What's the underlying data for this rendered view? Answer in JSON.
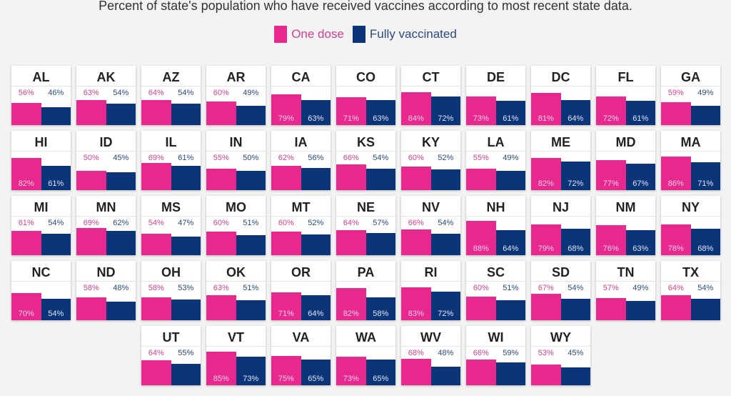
{
  "subtitle": "Percent of state's population who have received vaccines according to most recent state data.",
  "legend": [
    {
      "label": "One dose",
      "color": "#e7288f"
    },
    {
      "label": "Fully vaccinated",
      "color": "#0c3479"
    }
  ],
  "colors": {
    "one_dose": "#e7288f",
    "fully": "#0c3479",
    "one_text": "#d6408f",
    "fully_text": "#2a4a80"
  },
  "chart_data": {
    "type": "bar",
    "title": "Percent of state's population who have received vaccines according to most recent state data.",
    "series_names": [
      "One dose",
      "Fully vaccinated"
    ],
    "unit": "%",
    "ylim": [
      0,
      100
    ],
    "states": [
      {
        "state": "AL",
        "one_dose": 56,
        "fully": 46
      },
      {
        "state": "AK",
        "one_dose": 63,
        "fully": 54
      },
      {
        "state": "AZ",
        "one_dose": 64,
        "fully": 54
      },
      {
        "state": "AR",
        "one_dose": 60,
        "fully": 49
      },
      {
        "state": "CA",
        "one_dose": 79,
        "fully": 63
      },
      {
        "state": "CO",
        "one_dose": 71,
        "fully": 63
      },
      {
        "state": "CT",
        "one_dose": 84,
        "fully": 72
      },
      {
        "state": "DE",
        "one_dose": 73,
        "fully": 61
      },
      {
        "state": "DC",
        "one_dose": 81,
        "fully": 64
      },
      {
        "state": "FL",
        "one_dose": 72,
        "fully": 61
      },
      {
        "state": "GA",
        "one_dose": 59,
        "fully": 49
      },
      {
        "state": "HI",
        "one_dose": 82,
        "fully": 61
      },
      {
        "state": "ID",
        "one_dose": 50,
        "fully": 45
      },
      {
        "state": "IL",
        "one_dose": 69,
        "fully": 61
      },
      {
        "state": "IN",
        "one_dose": 55,
        "fully": 50
      },
      {
        "state": "IA",
        "one_dose": 62,
        "fully": 56
      },
      {
        "state": "KS",
        "one_dose": 66,
        "fully": 54
      },
      {
        "state": "KY",
        "one_dose": 60,
        "fully": 52
      },
      {
        "state": "LA",
        "one_dose": 55,
        "fully": 49
      },
      {
        "state": "ME",
        "one_dose": 82,
        "fully": 72
      },
      {
        "state": "MD",
        "one_dose": 77,
        "fully": 67
      },
      {
        "state": "MA",
        "one_dose": 86,
        "fully": 71
      },
      {
        "state": "MI",
        "one_dose": 61,
        "fully": 54
      },
      {
        "state": "MN",
        "one_dose": 69,
        "fully": 62
      },
      {
        "state": "MS",
        "one_dose": 54,
        "fully": 47
      },
      {
        "state": "MO",
        "one_dose": 60,
        "fully": 51
      },
      {
        "state": "MT",
        "one_dose": 60,
        "fully": 52
      },
      {
        "state": "NE",
        "one_dose": 64,
        "fully": 57
      },
      {
        "state": "NV",
        "one_dose": 66,
        "fully": 54
      },
      {
        "state": "NH",
        "one_dose": 88,
        "fully": 64
      },
      {
        "state": "NJ",
        "one_dose": 79,
        "fully": 68
      },
      {
        "state": "NM",
        "one_dose": 76,
        "fully": 63
      },
      {
        "state": "NY",
        "one_dose": 78,
        "fully": 68
      },
      {
        "state": "NC",
        "one_dose": 70,
        "fully": 54
      },
      {
        "state": "ND",
        "one_dose": 58,
        "fully": 48
      },
      {
        "state": "OH",
        "one_dose": 58,
        "fully": 53
      },
      {
        "state": "OK",
        "one_dose": 63,
        "fully": 51
      },
      {
        "state": "OR",
        "one_dose": 71,
        "fully": 64
      },
      {
        "state": "PA",
        "one_dose": 82,
        "fully": 58
      },
      {
        "state": "RI",
        "one_dose": 83,
        "fully": 72
      },
      {
        "state": "SC",
        "one_dose": 60,
        "fully": 51
      },
      {
        "state": "SD",
        "one_dose": 67,
        "fully": 54
      },
      {
        "state": "TN",
        "one_dose": 57,
        "fully": 49
      },
      {
        "state": "TX",
        "one_dose": 64,
        "fully": 54
      },
      {
        "state": "UT",
        "one_dose": 64,
        "fully": 55
      },
      {
        "state": "VT",
        "one_dose": 85,
        "fully": 73
      },
      {
        "state": "VA",
        "one_dose": 75,
        "fully": 65
      },
      {
        "state": "WA",
        "one_dose": 73,
        "fully": 65
      },
      {
        "state": "WV",
        "one_dose": 68,
        "fully": 48
      },
      {
        "state": "WI",
        "one_dose": 66,
        "fully": 59
      },
      {
        "state": "WY",
        "one_dose": 53,
        "fully": 45
      }
    ]
  }
}
